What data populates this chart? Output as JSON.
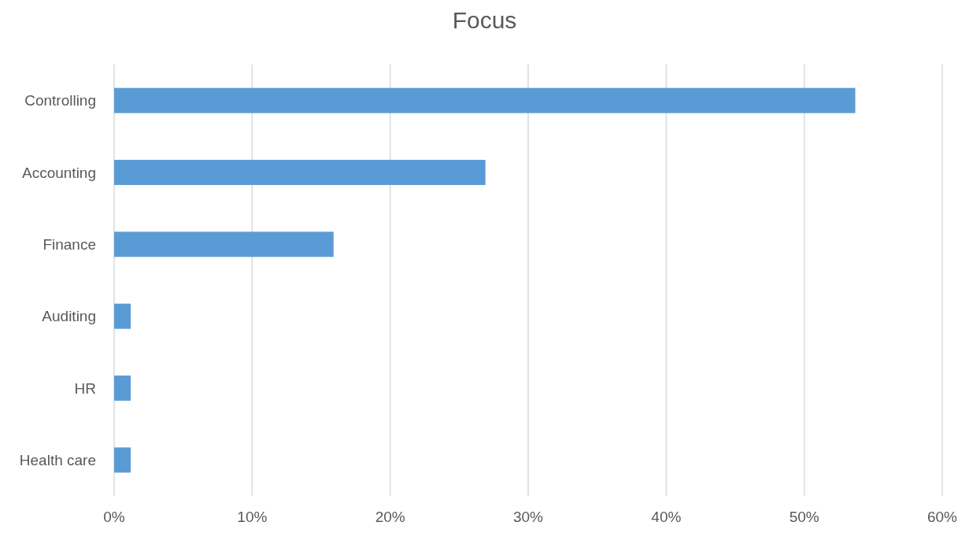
{
  "chart_data": {
    "type": "bar",
    "title": "Focus",
    "orientation": "horizontal",
    "categories": [
      "Controlling",
      "Accounting",
      "Finance",
      "Auditing",
      "HR",
      "Health care"
    ],
    "values": [
      53.7,
      26.9,
      15.9,
      1.2,
      1.2,
      1.2
    ],
    "color": "#5b9bd5",
    "xlim": [
      0,
      60
    ],
    "xticks": [
      {
        "value": 0,
        "label": "0%"
      },
      {
        "value": 10,
        "label": "10%"
      },
      {
        "value": 20,
        "label": "20%"
      },
      {
        "value": 30,
        "label": "30%"
      },
      {
        "value": 40,
        "label": "40%"
      },
      {
        "value": 50,
        "label": "50%"
      },
      {
        "value": 60,
        "label": "60%"
      }
    ],
    "grid": "x"
  }
}
